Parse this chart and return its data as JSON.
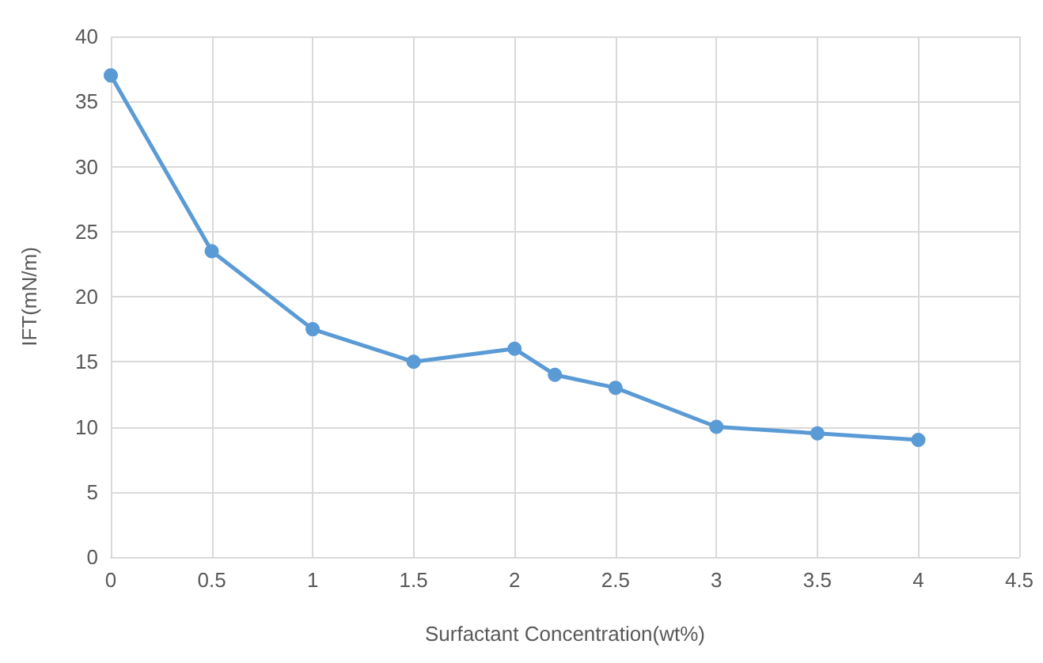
{
  "chart_data": {
    "type": "line",
    "xlabel": "Surfactant Concentration(wt%)",
    "ylabel": "IFT(mN/m)",
    "x": [
      0,
      0.5,
      1,
      1.5,
      2,
      2.2,
      2.5,
      3,
      3.5,
      4
    ],
    "series": [
      {
        "color": "#5b9bd5",
        "values": [
          37,
          23.5,
          17.5,
          15,
          16,
          14,
          13,
          10,
          9.5,
          9
        ]
      }
    ],
    "xlim": [
      0,
      4.5
    ],
    "xticks": [
      0,
      0.5,
      1,
      1.5,
      2,
      2.5,
      3,
      3.5,
      4,
      4.5
    ],
    "ylim": [
      0,
      40
    ],
    "yticks": [
      0,
      5,
      10,
      15,
      20,
      25,
      30,
      35,
      40
    ],
    "grid": true,
    "marker": "circle",
    "line_style": "solid"
  }
}
